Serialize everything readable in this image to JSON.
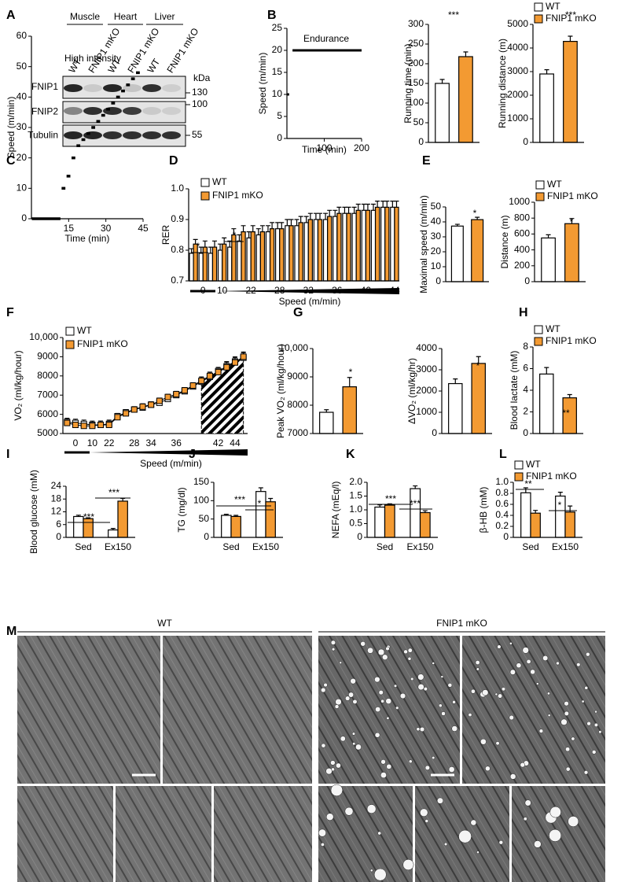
{
  "panel_labels": [
    "A",
    "B",
    "C",
    "D",
    "E",
    "F",
    "G",
    "H",
    "I",
    "J",
    "K",
    "L",
    "M"
  ],
  "blot": {
    "tissues": [
      "Muscle",
      "Heart",
      "Liver"
    ],
    "lanes": [
      "WT",
      "FNIP1 mKO",
      "WT",
      "FNIP1 mKO",
      "WT",
      "FNIP1 mKO"
    ],
    "proteins": [
      "FNIP1",
      "FNIP2",
      "Tubulin"
    ],
    "unit": "kDa",
    "markers": [
      130,
      100,
      55
    ]
  },
  "micrographs": {
    "groups": [
      "WT",
      "FNIP1 mKO"
    ]
  },
  "chart_data": [
    {
      "type": "line",
      "title": "Endurance",
      "y_label": "Speed (m/min)",
      "x_label": "Time (min)",
      "x": [
        0,
        6,
        10,
        15,
        200
      ],
      "values": [
        10,
        10,
        null,
        20,
        20
      ],
      "color": "#000000",
      "xlim": [
        0,
        200
      ],
      "xticks": [
        100,
        200
      ],
      "ylim": [
        0,
        25
      ],
      "yticks": [
        0,
        5,
        10,
        15,
        20,
        25
      ]
    },
    {
      "type": "bar",
      "y_label": "Running time (min)",
      "series": [
        {
          "color": "#ffffff",
          "values": [
            150
          ],
          "errors": [
            10
          ]
        },
        {
          "color": "#f39a32",
          "values": [
            218
          ],
          "errors": [
            12
          ]
        }
      ],
      "ylim": [
        0,
        300
      ],
      "yticks": [
        0,
        50,
        100,
        150,
        200,
        250,
        300
      ],
      "annotations": [
        "***"
      ]
    },
    {
      "type": "bar",
      "y_label": "Running distance (m)",
      "series": [
        {
          "name": "WT",
          "color": "#ffffff",
          "values": [
            2900
          ],
          "errors": [
            180
          ]
        },
        {
          "name": "FNIP1 mKO",
          "color": "#f39a32",
          "values": [
            4280
          ],
          "errors": [
            220
          ]
        }
      ],
      "ylim": [
        0,
        5000
      ],
      "yticks": [
        0,
        1000,
        2000,
        3000,
        4000,
        5000
      ],
      "annotations": [
        "***"
      ],
      "legend": "above"
    },
    {
      "type": "step",
      "title": "High intensity",
      "y_label": "Speed (m/min)",
      "x_label": "Time (min)",
      "x": [
        0,
        12,
        14,
        16,
        18,
        20,
        22,
        24,
        26,
        28,
        30,
        32,
        34,
        36,
        38,
        40,
        42
      ],
      "values": [
        0,
        10,
        14,
        20,
        24,
        26,
        28,
        30,
        32,
        34,
        36,
        38,
        40,
        42,
        44,
        46,
        48
      ],
      "color": "#000000",
      "xlim": [
        0,
        45
      ],
      "xticks": [
        15,
        30,
        45
      ],
      "ylim": [
        0,
        60
      ],
      "yticks": [
        0,
        10,
        20,
        30,
        40,
        50,
        60
      ]
    },
    {
      "type": "bar",
      "y_label": "RER",
      "x_label": "Speed (m/min)",
      "categories": [
        null,
        "0",
        null,
        "10",
        null,
        null,
        "22",
        null,
        null,
        "28",
        null,
        null,
        "32",
        null,
        null,
        "36",
        null,
        null,
        "40",
        null,
        null,
        "44"
      ],
      "series": [
        {
          "name": "WT",
          "color": "#ffffff",
          "values": [
            0.79,
            0.79,
            0.79,
            0.8,
            0.81,
            0.83,
            0.84,
            0.85,
            0.86,
            0.87,
            0.88,
            0.88,
            0.89,
            0.9,
            0.9,
            0.91,
            0.92,
            0.92,
            0.93,
            0.93,
            0.94,
            0.94
          ],
          "errors": [
            0.015,
            0.02,
            0.02,
            0.02,
            0.02,
            0.02,
            0.02,
            0.02,
            0.02,
            0.02,
            0.02,
            0.02,
            0.02,
            0.02,
            0.02,
            0.02,
            0.02,
            0.02,
            0.02,
            0.02,
            0.02,
            0.02
          ]
        },
        {
          "name": "FNIP1 mKO",
          "color": "#f39a32",
          "values": [
            0.82,
            0.81,
            0.81,
            0.82,
            0.85,
            0.86,
            0.86,
            0.86,
            0.87,
            0.87,
            0.88,
            0.89,
            0.9,
            0.9,
            0.91,
            0.92,
            0.92,
            0.93,
            0.93,
            0.94,
            0.94,
            0.94
          ],
          "errors": [
            0.015,
            0.02,
            0.02,
            0.02,
            0.02,
            0.02,
            0.02,
            0.02,
            0.02,
            0.02,
            0.02,
            0.02,
            0.02,
            0.02,
            0.02,
            0.02,
            0.02,
            0.02,
            0.02,
            0.02,
            0.02,
            0.02
          ]
        }
      ],
      "ylim": [
        0.7,
        1.0
      ],
      "yticks": [
        0.7,
        0.8,
        0.9,
        {
          "value": 1,
          "label": "1.0"
        }
      ],
      "annotations": [
        "*",
        "*"
      ],
      "legend": "top-left"
    },
    {
      "type": "bar",
      "y_label": "Maximal speed (m/min)",
      "series": [
        {
          "color": "#ffffff",
          "values": [
            37.2
          ],
          "errors": [
            1.2
          ]
        },
        {
          "color": "#f39a32",
          "values": [
            41.5
          ],
          "errors": [
            1.6
          ]
        }
      ],
      "ylim": [
        0,
        50
      ],
      "yticks": [
        0,
        10,
        20,
        30,
        40,
        50
      ],
      "annotations": [
        "*"
      ]
    },
    {
      "type": "bar",
      "y_label": "Distance (m)",
      "series": [
        {
          "name": "WT",
          "color": "#ffffff",
          "values": [
            550
          ],
          "errors": [
            40
          ]
        },
        {
          "name": "FNIP1 mKO",
          "color": "#f39a32",
          "values": [
            730
          ],
          "errors": [
            65
          ]
        }
      ],
      "ylim": [
        0,
        1000
      ],
      "yticks": [
        0,
        200,
        400,
        600,
        800,
        1000
      ],
      "annotations": [
        "*"
      ],
      "legend": "above"
    },
    {
      "type": "line",
      "y_label": "VO₂ (ml/kg/hour)",
      "x_label": "Speed (m/min)",
      "categories": [
        null,
        "0",
        null,
        "10",
        null,
        "22",
        null,
        null,
        "28",
        null,
        "34",
        null,
        null,
        "36",
        null,
        null,
        null,
        null,
        "42",
        null,
        "44",
        null
      ],
      "series": [
        {
          "name": "WT",
          "color": "#ffffff",
          "values": [
            5600,
            5550,
            5500,
            5450,
            5450,
            5500,
            5900,
            6100,
            6250,
            6350,
            6500,
            6600,
            6800,
            7000,
            7200,
            7450,
            7700,
            7950,
            8250,
            8500,
            8750,
            8950
          ],
          "errors": [
            200,
            200,
            200,
            200,
            200,
            200,
            150,
            150,
            150,
            150,
            150,
            150,
            150,
            150,
            150,
            150,
            200,
            200,
            200,
            250,
            250,
            250
          ]
        },
        {
          "name": "FNIP1 mKO",
          "color": "#f39a32",
          "values": [
            5550,
            5450,
            5400,
            5400,
            5450,
            5450,
            5850,
            6050,
            6250,
            6400,
            6500,
            6700,
            6900,
            7050,
            7250,
            7500,
            7750,
            8000,
            8200,
            8450,
            8700,
            9000
          ],
          "errors": [
            200,
            200,
            200,
            200,
            200,
            200,
            150,
            150,
            150,
            150,
            150,
            150,
            150,
            150,
            150,
            150,
            200,
            200,
            200,
            250,
            250,
            250
          ]
        }
      ],
      "ylim": [
        5000,
        10000
      ],
      "yticks": [
        5000,
        6000,
        7000,
        8000,
        9000,
        {
          "value": 10000,
          "label": "10,000"
        }
      ],
      "legend": "top-left"
    },
    {
      "type": "bar",
      "y_label": "Peak VO₂ (ml/kg/hour)",
      "series": [
        {
          "color": "#ffffff",
          "values": [
            7750
          ],
          "errors": [
            90
          ]
        },
        {
          "color": "#f39a32",
          "values": [
            8650
          ],
          "errors": [
            330
          ]
        }
      ],
      "ylim": [
        7000,
        10000
      ],
      "yticks": [
        7000,
        8000,
        9000,
        {
          "value": 10000,
          "label": "10,000"
        }
      ],
      "annotations": [
        "*"
      ]
    },
    {
      "type": "bar",
      "y_label": "ΔVO₂ (ml/kg/hr)",
      "series": [
        {
          "color": "#ffffff",
          "values": [
            2350
          ],
          "errors": [
            220
          ]
        },
        {
          "color": "#f39a32",
          "values": [
            3300
          ],
          "errors": [
            320
          ]
        }
      ],
      "ylim": [
        0,
        4000
      ],
      "yticks": [
        0,
        1000,
        2000,
        3000,
        4000
      ],
      "annotations": [
        "*"
      ]
    },
    {
      "type": "bar",
      "y_label": "Blood lactate (mM)",
      "series": [
        {
          "name": "WT",
          "color": "#ffffff",
          "values": [
            5.5
          ],
          "errors": [
            0.6
          ]
        },
        {
          "name": "FNIP1 mKO",
          "color": "#f39a32",
          "values": [
            3.3
          ],
          "errors": [
            0.3
          ]
        }
      ],
      "ylim": [
        0,
        8
      ],
      "yticks": [
        0,
        2,
        4,
        6,
        8
      ],
      "annotations": [
        "**"
      ],
      "legend": "above"
    },
    {
      "type": "bar",
      "y_label": "Blood glucose (mM)",
      "categories": [
        "Sed",
        "Ex150"
      ],
      "series": [
        {
          "color": "#ffffff",
          "values": [
            9.8,
            3.5
          ],
          "errors": [
            0.6,
            0.7
          ]
        },
        {
          "color": "#f39a32",
          "values": [
            8.8,
            17
          ],
          "errors": [
            0.4,
            1.3
          ]
        }
      ],
      "ylim": [
        0,
        24
      ],
      "yticks": [
        0,
        6,
        12,
        18,
        24
      ],
      "annotations": [
        "***",
        "***"
      ]
    },
    {
      "type": "bar",
      "y_label": "TG (mg/dl)",
      "categories": [
        "Sed",
        "Ex150"
      ],
      "series": [
        {
          "color": "#ffffff",
          "values": [
            60,
            125
          ],
          "errors": [
            3,
            10
          ]
        },
        {
          "color": "#f39a32",
          "values": [
            57,
            97
          ],
          "errors": [
            3,
            9
          ]
        }
      ],
      "ylim": [
        0,
        150
      ],
      "yticks": [
        0,
        50,
        100,
        150
      ],
      "annotations": [
        "***",
        "*"
      ]
    },
    {
      "type": "bar",
      "y_label": "NEFA (mEq/l)",
      "categories": [
        "Sed",
        "Ex150"
      ],
      "series": [
        {
          "color": "#ffffff",
          "values": [
            1.1,
            1.77
          ],
          "errors": [
            0.08,
            0.1
          ]
        },
        {
          "color": "#f39a32",
          "values": [
            1.17,
            0.9
          ],
          "errors": [
            0.05,
            0.07
          ]
        }
      ],
      "ylim": [
        0,
        2
      ],
      "yticks": [
        0,
        0.5,
        {
          "value": 1,
          "label": "1.0"
        },
        1.5,
        {
          "value": 2,
          "label": "2.0"
        }
      ],
      "annotations": [
        "***",
        "***"
      ]
    },
    {
      "type": "bar",
      "y_label": "β-HB (mM)",
      "categories": [
        "Sed",
        "Ex150"
      ],
      "series": [
        {
          "name": "WT",
          "color": "#ffffff",
          "values": [
            0.81,
            0.75
          ],
          "errors": [
            0.09,
            0.07
          ]
        },
        {
          "name": "FNIP1 mKO",
          "color": "#f39a32",
          "values": [
            0.44,
            0.46
          ],
          "errors": [
            0.05,
            0.11
          ]
        }
      ],
      "ylim": [
        0,
        1
      ],
      "yticks": [
        0,
        0.2,
        0.4,
        0.6,
        0.8,
        {
          "value": 1,
          "label": "1.0"
        }
      ],
      "annotations": [
        "**",
        "*"
      ],
      "legend": "above"
    }
  ]
}
